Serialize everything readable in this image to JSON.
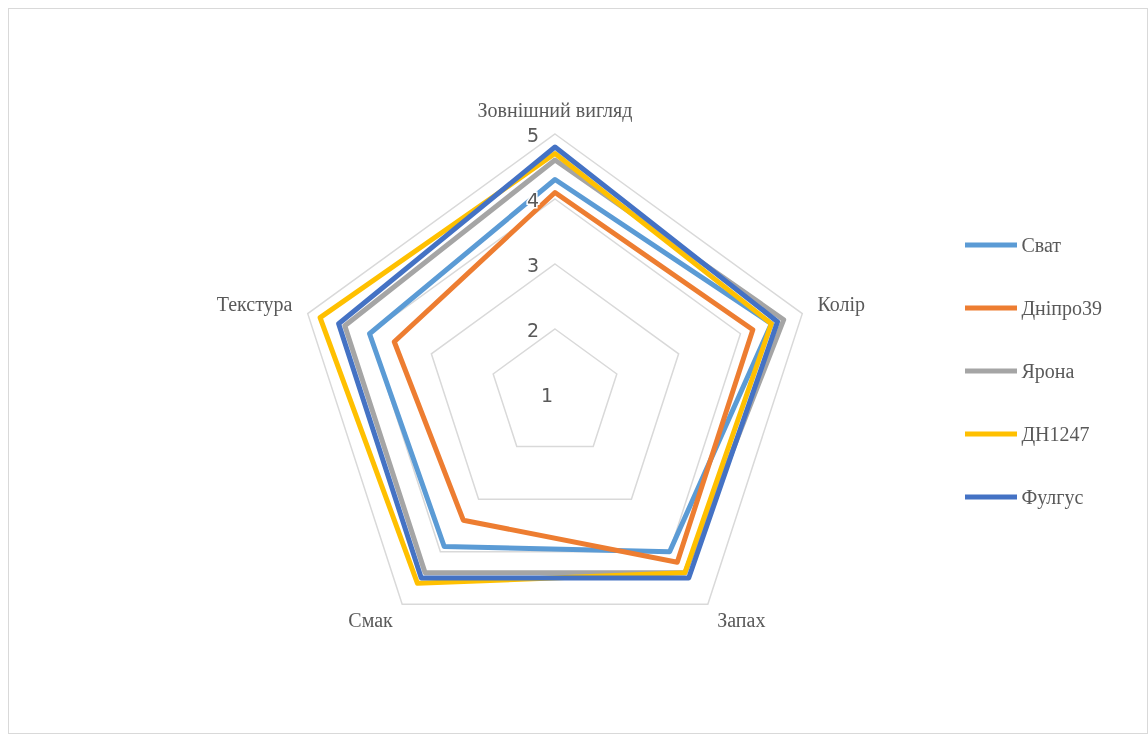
{
  "chart_data": {
    "type": "radar",
    "categories": [
      "Зовнішний вигляд",
      "Колір",
      "Запах",
      "Смак",
      "Текстура"
    ],
    "series": [
      {
        "name": "Сват",
        "color": "#5b9bd5",
        "values": [
          4.3,
          4.5,
          4.0,
          3.9,
          4.0
        ]
      },
      {
        "name": "Дніпро39",
        "color": "#ed7d31",
        "values": [
          4.1,
          4.2,
          4.2,
          3.4,
          3.6
        ]
      },
      {
        "name": "Ярона",
        "color": "#a5a5a5",
        "values": [
          4.6,
          4.7,
          4.4,
          4.4,
          4.4
        ]
      },
      {
        "name": "ДН1247",
        "color": "#ffc000",
        "values": [
          4.7,
          4.5,
          4.4,
          4.6,
          4.8
        ]
      },
      {
        "name": "Фулгус",
        "color": "#4472c4",
        "values": [
          4.8,
          4.6,
          4.5,
          4.5,
          4.5
        ]
      }
    ],
    "ylim": [
      1,
      5
    ],
    "yticks": [
      1,
      2,
      3,
      4,
      5
    ],
    "grid": true,
    "legend": "right",
    "marker": "none",
    "line_style": "solid"
  }
}
